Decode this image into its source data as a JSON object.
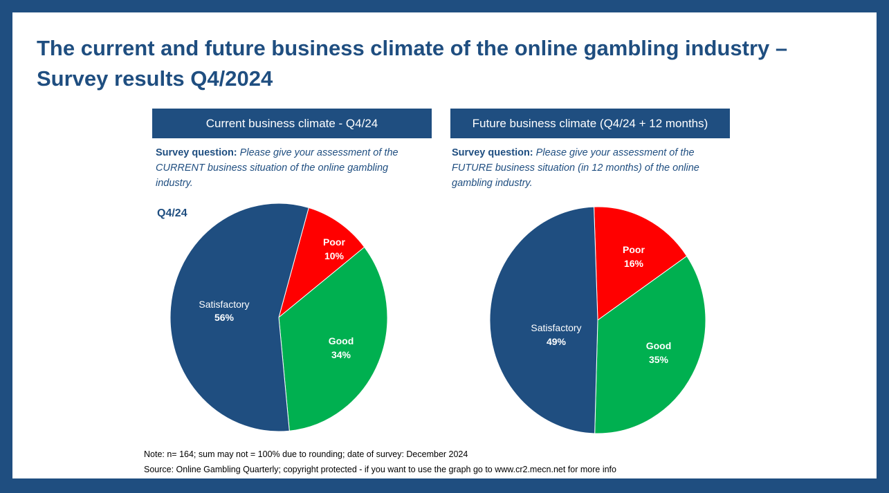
{
  "title_line1": "The current and future business climate of the online gambling industry –",
  "title_line2": "Survey results Q4/2024",
  "colors": {
    "frame": "#1f4e80",
    "header_bg": "#1f4e80",
    "satisfactory": "#1f4e80",
    "poor": "#ff0000",
    "good": "#00b050"
  },
  "panels": [
    {
      "header": "Current business climate - Q4/24",
      "question_label": "Survey question:",
      "question_text": "Please give your assessment  of the CURRENT  business situation of the online gambling industry.",
      "period_label": "Q4/24"
    },
    {
      "header": "Future business climate (Q4/24 + 12 months)",
      "question_label": "Survey question:",
      "question_text": "Please give your assessment  of the FUTURE   business situation (in 12 months) of the online gambling industry."
    }
  ],
  "chart_data": [
    {
      "type": "pie",
      "title": "Current business climate - Q4/24",
      "slices": [
        {
          "label": "Poor",
          "value": 10,
          "value_label": "10%",
          "color": "#ff0000"
        },
        {
          "label": "Good",
          "value": 34,
          "value_label": "34%",
          "color": "#00b050"
        },
        {
          "label": "Satisfactory",
          "value": 56,
          "value_label": "56%",
          "color": "#1f4e80"
        }
      ]
    },
    {
      "type": "pie",
      "title": "Future business climate (Q4/24 + 12 months)",
      "slices": [
        {
          "label": "Poor",
          "value": 16,
          "value_label": "16%",
          "color": "#ff0000"
        },
        {
          "label": "Good",
          "value": 35,
          "value_label": "35%",
          "color": "#00b050"
        },
        {
          "label": "Satisfactory",
          "value": 49,
          "value_label": "49%",
          "color": "#1f4e80"
        }
      ]
    }
  ],
  "notes": {
    "note": "Note: n= 164; sum may not = 100% due to rounding; date of survey: December 2024",
    "source": "Source: Online Gambling Quarterly; copyright protected - if you want to use the graph go to www.cr2.mecn.net for more info"
  }
}
